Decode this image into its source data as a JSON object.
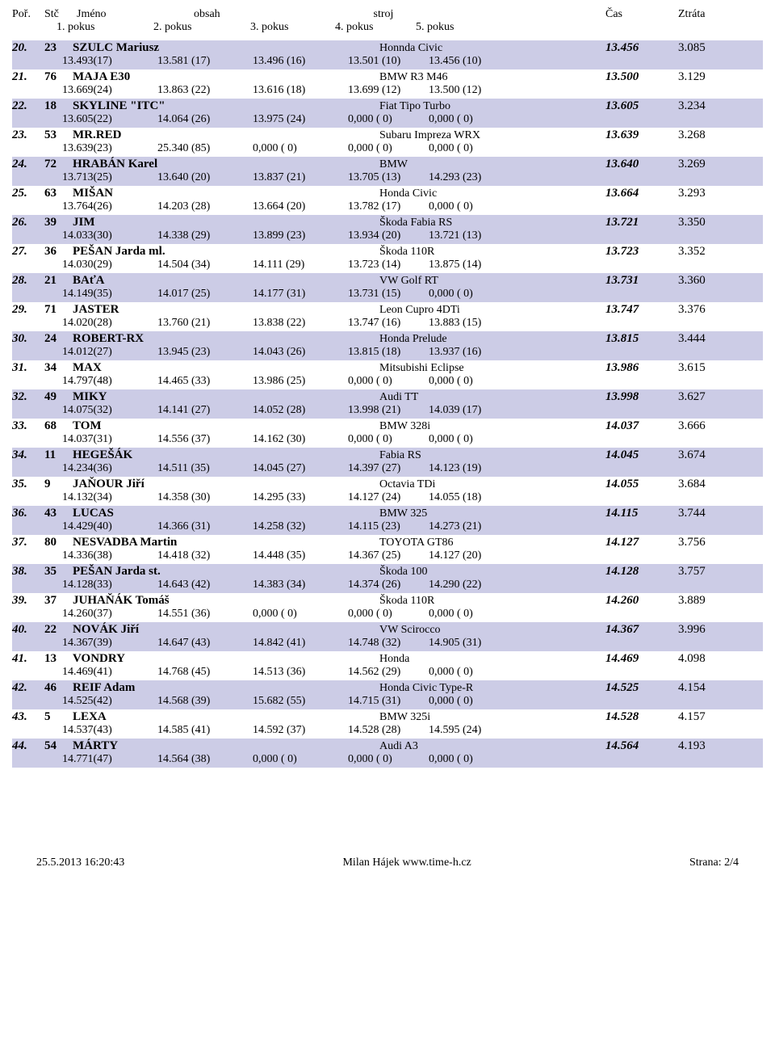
{
  "headers": {
    "pos": "Poř.",
    "stc": "Stč",
    "name": "Jméno",
    "obsah": "obsah",
    "stroj": "stroj",
    "cas": "Čas",
    "ztrata": "Ztráta",
    "pokus1": "1. pokus",
    "pokus2": "2. pokus",
    "pokus3": "3. pokus",
    "pokus4": "4. pokus",
    "pokus5": "5. pokus"
  },
  "rows": [
    {
      "pos": "20.",
      "stc": "23",
      "name": "SZULC Mariusz",
      "car": "Honnda Civic",
      "cas": "13.456",
      "ztrata": "3.085",
      "p1": "13.493(17)",
      "p2": "13.581 (17)",
      "p3": "13.496 (16)",
      "p4": "13.501 (10)",
      "p5": "13.456 (10)"
    },
    {
      "pos": "21.",
      "stc": "76",
      "name": "MAJA E30",
      "car": "BMW R3 M46",
      "cas": "13.500",
      "ztrata": "3.129",
      "p1": "13.669(24)",
      "p2": "13.863 (22)",
      "p3": "13.616 (18)",
      "p4": "13.699 (12)",
      "p5": "13.500 (12)"
    },
    {
      "pos": "22.",
      "stc": "18",
      "name": "SKYLINE \"ITC\"",
      "car": "Fiat Tipo Turbo",
      "cas": "13.605",
      "ztrata": "3.234",
      "p1": "13.605(22)",
      "p2": "14.064 (26)",
      "p3": "13.975 (24)",
      "p4": "0,000 ( 0)",
      "p5": "0,000 ( 0)"
    },
    {
      "pos": "23.",
      "stc": "53",
      "name": "MR.RED",
      "car": "Subaru Impreza WRX",
      "cas": "13.639",
      "ztrata": "3.268",
      "p1": "13.639(23)",
      "p2": "25.340 (85)",
      "p3": "0,000 ( 0)",
      "p4": "0,000 ( 0)",
      "p5": "0,000 ( 0)"
    },
    {
      "pos": "24.",
      "stc": "72",
      "name": "HRABÁN Karel",
      "car": "BMW",
      "cas": "13.640",
      "ztrata": "3.269",
      "p1": "13.713(25)",
      "p2": "13.640 (20)",
      "p3": "13.837 (21)",
      "p4": "13.705 (13)",
      "p5": "14.293 (23)"
    },
    {
      "pos": "25.",
      "stc": "63",
      "name": "MIŠAN",
      "car": "Honda Civic",
      "cas": "13.664",
      "ztrata": "3.293",
      "p1": "13.764(26)",
      "p2": "14.203 (28)",
      "p3": "13.664 (20)",
      "p4": "13.782 (17)",
      "p5": "0,000 ( 0)"
    },
    {
      "pos": "26.",
      "stc": "39",
      "name": "JIM",
      "car": "Škoda Fabia RS",
      "cas": "13.721",
      "ztrata": "3.350",
      "p1": "14.033(30)",
      "p2": "14.338 (29)",
      "p3": "13.899 (23)",
      "p4": "13.934 (20)",
      "p5": "13.721 (13)"
    },
    {
      "pos": "27.",
      "stc": "36",
      "name": "PEŠAN Jarda ml.",
      "car": "Škoda 110R",
      "cas": "13.723",
      "ztrata": "3.352",
      "p1": "14.030(29)",
      "p2": "14.504 (34)",
      "p3": "14.111 (29)",
      "p4": "13.723 (14)",
      "p5": "13.875 (14)"
    },
    {
      "pos": "28.",
      "stc": "21",
      "name": "BAťA",
      "car": "VW Golf RT",
      "cas": "13.731",
      "ztrata": "3.360",
      "p1": "14.149(35)",
      "p2": "14.017 (25)",
      "p3": "14.177 (31)",
      "p4": "13.731 (15)",
      "p5": "0,000 ( 0)"
    },
    {
      "pos": "29.",
      "stc": "71",
      "name": "JASTER",
      "car": "Leon Cupro 4DTi",
      "cas": "13.747",
      "ztrata": "3.376",
      "p1": "14.020(28)",
      "p2": "13.760 (21)",
      "p3": "13.838 (22)",
      "p4": "13.747 (16)",
      "p5": "13.883 (15)"
    },
    {
      "pos": "30.",
      "stc": "24",
      "name": "ROBERT-RX",
      "car": "Honda Prelude",
      "cas": "13.815",
      "ztrata": "3.444",
      "p1": "14.012(27)",
      "p2": "13.945 (23)",
      "p3": "14.043 (26)",
      "p4": "13.815 (18)",
      "p5": "13.937 (16)"
    },
    {
      "pos": "31.",
      "stc": "34",
      "name": "MAX",
      "car": "Mitsubishi Eclipse",
      "cas": "13.986",
      "ztrata": "3.615",
      "p1": "14.797(48)",
      "p2": "14.465 (33)",
      "p3": "13.986 (25)",
      "p4": "0,000 ( 0)",
      "p5": "0,000 ( 0)"
    },
    {
      "pos": "32.",
      "stc": "49",
      "name": "MIKY",
      "car": "Audi TT",
      "cas": "13.998",
      "ztrata": "3.627",
      "p1": "14.075(32)",
      "p2": "14.141 (27)",
      "p3": "14.052 (28)",
      "p4": "13.998 (21)",
      "p5": "14.039 (17)"
    },
    {
      "pos": "33.",
      "stc": "68",
      "name": "TOM",
      "car": "BMW 328i",
      "cas": "14.037",
      "ztrata": "3.666",
      "p1": "14.037(31)",
      "p2": "14.556 (37)",
      "p3": "14.162 (30)",
      "p4": "0,000 ( 0)",
      "p5": "0,000 ( 0)"
    },
    {
      "pos": "34.",
      "stc": "11",
      "name": "HEGEŠÁK",
      "car": "Fabia RS",
      "cas": "14.045",
      "ztrata": "3.674",
      "p1": "14.234(36)",
      "p2": "14.511 (35)",
      "p3": "14.045 (27)",
      "p4": "14.397 (27)",
      "p5": "14.123 (19)"
    },
    {
      "pos": "35.",
      "stc": "9",
      "name": "JAŇOUR Jiří",
      "car": "Octavia TDi",
      "cas": "14.055",
      "ztrata": "3.684",
      "p1": "14.132(34)",
      "p2": "14.358 (30)",
      "p3": "14.295 (33)",
      "p4": "14.127 (24)",
      "p5": "14.055 (18)"
    },
    {
      "pos": "36.",
      "stc": "43",
      "name": "LUCAS",
      "car": "BMW 325",
      "cas": "14.115",
      "ztrata": "3.744",
      "p1": "14.429(40)",
      "p2": "14.366 (31)",
      "p3": "14.258 (32)",
      "p4": "14.115 (23)",
      "p5": "14.273 (21)"
    },
    {
      "pos": "37.",
      "stc": "80",
      "name": "NESVADBA Martin",
      "car": "TOYOTA GT86",
      "cas": "14.127",
      "ztrata": "3.756",
      "p1": "14.336(38)",
      "p2": "14.418 (32)",
      "p3": "14.448 (35)",
      "p4": "14.367 (25)",
      "p5": "14.127 (20)"
    },
    {
      "pos": "38.",
      "stc": "35",
      "name": "PEŠAN Jarda st.",
      "car": "Škoda 100",
      "cas": "14.128",
      "ztrata": "3.757",
      "p1": "14.128(33)",
      "p2": "14.643 (42)",
      "p3": "14.383 (34)",
      "p4": "14.374 (26)",
      "p5": "14.290 (22)"
    },
    {
      "pos": "39.",
      "stc": "37",
      "name": "JUHAŇÁK Tomáš",
      "car": "Škoda 110R",
      "cas": "14.260",
      "ztrata": "3.889",
      "p1": "14.260(37)",
      "p2": "14.551 (36)",
      "p3": "0,000 ( 0)",
      "p4": "0,000 ( 0)",
      "p5": "0,000 ( 0)"
    },
    {
      "pos": "40.",
      "stc": "22",
      "name": "NOVÁK Jiří",
      "car": "VW Scirocco",
      "cas": "14.367",
      "ztrata": "3.996",
      "p1": "14.367(39)",
      "p2": "14.647 (43)",
      "p3": "14.842 (41)",
      "p4": "14.748 (32)",
      "p5": "14.905 (31)"
    },
    {
      "pos": "41.",
      "stc": "13",
      "name": "VONDRY",
      "car": "Honda",
      "cas": "14.469",
      "ztrata": "4.098",
      "p1": "14.469(41)",
      "p2": "14.768 (45)",
      "p3": "14.513 (36)",
      "p4": "14.562 (29)",
      "p5": "0,000 ( 0)"
    },
    {
      "pos": "42.",
      "stc": "46",
      "name": "REIF Adam",
      "car": "Honda Civic Type-R",
      "cas": "14.525",
      "ztrata": "4.154",
      "p1": "14.525(42)",
      "p2": "14.568 (39)",
      "p3": "15.682 (55)",
      "p4": "14.715 (31)",
      "p5": "0,000 ( 0)"
    },
    {
      "pos": "43.",
      "stc": "5",
      "name": "LEXA",
      "car": "BMW 325i",
      "cas": "14.528",
      "ztrata": "4.157",
      "p1": "14.537(43)",
      "p2": "14.585 (41)",
      "p3": "14.592 (37)",
      "p4": "14.528 (28)",
      "p5": "14.595 (24)"
    },
    {
      "pos": "44.",
      "stc": "54",
      "name": "MÁRTY",
      "car": "Audi A3",
      "cas": "14.564",
      "ztrata": "4.193",
      "p1": "14.771(47)",
      "p2": "14.564 (38)",
      "p3": "0,000 ( 0)",
      "p4": "0,000 ( 0)",
      "p5": "0,000 ( 0)"
    }
  ],
  "footer": {
    "left": "25.5.2013 16:20:43",
    "center": "Milan Hájek    www.time-h.cz",
    "right": "Strana: 2/4"
  },
  "style": {
    "row_odd_bg": "#cccce6",
    "row_even_bg": "#ffffff"
  }
}
